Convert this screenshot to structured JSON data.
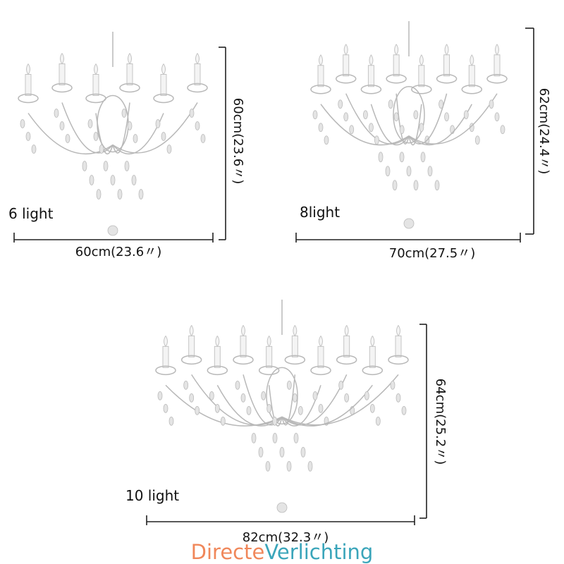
{
  "products": [
    {
      "label": "6 light",
      "width": "60cm(23.6〃)",
      "height": "60cm(23.6〃)"
    },
    {
      "label": "8light",
      "width": "70cm(27.5〃)",
      "height": "62cm(24.4〃)"
    },
    {
      "label": "10 light",
      "width": "82cm(32.3〃)",
      "height": "64cm(25.2〃)"
    }
  ],
  "brand": {
    "part1": "Directe",
    "part2": "Verlichting"
  }
}
